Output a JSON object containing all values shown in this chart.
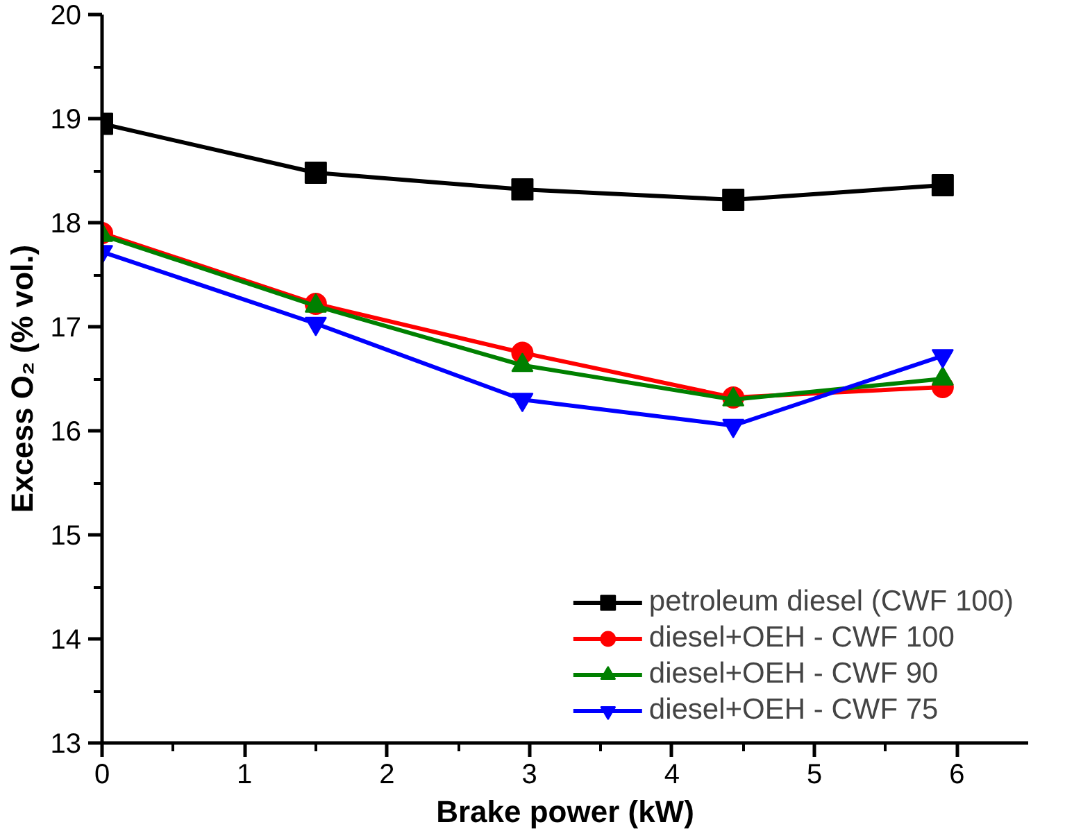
{
  "chart_data": {
    "type": "line",
    "xlabel": "Brake power (kW)",
    "ylabel": "Excess O₂ (% vol.)",
    "x": [
      0,
      1.5,
      2.95,
      4.43,
      5.9
    ],
    "xlim": [
      0,
      6.5
    ],
    "xticks": [
      0,
      1,
      2,
      3,
      4,
      5,
      6
    ],
    "ylim": [
      13,
      20
    ],
    "yticks": [
      13,
      14,
      15,
      16,
      17,
      18,
      19,
      20
    ],
    "grid": false,
    "legend": "bottom right",
    "line_style": "solid",
    "series": [
      {
        "name": "petroleum diesel (CWF 100)",
        "color": "#000000",
        "marker": "square",
        "values": [
          18.95,
          18.48,
          18.32,
          18.22,
          18.36
        ]
      },
      {
        "name": "diesel+OEH - CWF 100",
        "color": "#ff0000",
        "marker": "circle",
        "values": [
          17.9,
          17.22,
          16.75,
          16.32,
          16.42
        ]
      },
      {
        "name": "diesel+OEH - CWF 90",
        "color": "#008000",
        "marker": "triangle",
        "values": [
          17.88,
          17.2,
          16.63,
          16.3,
          16.5
        ]
      },
      {
        "name": "diesel+OEH - CWF 75",
        "color": "#0000ff",
        "marker": "triangle",
        "values": [
          17.72,
          17.03,
          16.3,
          16.05,
          16.72
        ]
      }
    ]
  }
}
